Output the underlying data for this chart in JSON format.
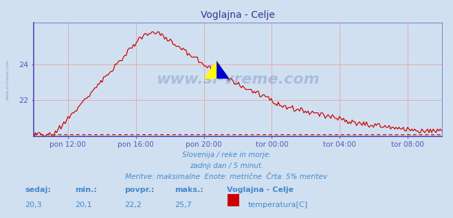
{
  "title": "Voglajna - Celje",
  "background_color": "#d0e0f0",
  "plot_bg_color": "#d0e0f0",
  "line_color": "#cc0000",
  "axis_color": "#5555bb",
  "grid_color": "#e8a0a0",
  "ylabel_ticks": [
    22,
    24
  ],
  "ymin": 20.0,
  "ymax": 26.3,
  "tick_positions": [
    24,
    72,
    120,
    168,
    216,
    264
  ],
  "xlabel_labels": [
    "pon 12:00",
    "pon 16:00",
    "pon 20:00",
    "tor 00:00",
    "tor 04:00",
    "tor 08:00"
  ],
  "watermark": "www.si-vreme.com",
  "footer_line1": "Slovenija / reke in morje.",
  "footer_line2": "zadnji dan / 5 minut.",
  "footer_line3": "Meritve: maksimalne  Enote: metrične  Črta: 5% meritev",
  "footer_color": "#4488cc",
  "stats_labels": [
    "sedaj:",
    "min.:",
    "povpr.:",
    "maks.:"
  ],
  "stats_values": [
    "20,3",
    "20,1",
    "22,2",
    "25,7"
  ],
  "legend_title": "Voglajna - Celje",
  "legend_label": "temperatura[C]",
  "legend_color": "#cc0000",
  "title_color": "#333399",
  "title_fontsize": 10,
  "watermark_color": "#4466aa",
  "watermark_alpha": 0.28,
  "dashed_line_y": 20.1,
  "dashed_line_color": "#cc0000",
  "dashed_line_style": ":",
  "figsize": [
    6.59,
    3.18
  ],
  "dpi": 100,
  "left_text": "www.si-vreme.com",
  "n_points": 288,
  "xmax": 288
}
